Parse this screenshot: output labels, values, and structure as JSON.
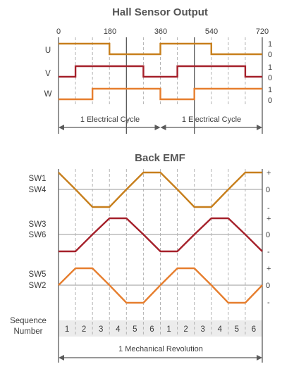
{
  "colors": {
    "u": "#c77f1c",
    "v": "#a5202a",
    "w": "#e67e2e",
    "axis": "#5a5a5a",
    "dash": "#b3b3b3",
    "band": "#ececec",
    "text": "#3c3c3c"
  },
  "hall": {
    "title": "Hall Sensor Output",
    "degree_ticks": [
      "0",
      "180",
      "360",
      "540",
      "720"
    ],
    "signals": [
      {
        "name": "U",
        "high_label": "1",
        "low_label": "0",
        "color_key": "u",
        "pattern": [
          1,
          1,
          1,
          0,
          0,
          0,
          1,
          1,
          1,
          0,
          0,
          0
        ]
      },
      {
        "name": "V",
        "high_label": "1",
        "low_label": "0",
        "color_key": "v",
        "pattern": [
          0,
          1,
          1,
          1,
          1,
          0,
          0,
          1,
          1,
          1,
          1,
          0
        ]
      },
      {
        "name": "W",
        "high_label": "1",
        "low_label": "0",
        "color_key": "w",
        "pattern": [
          0,
          0,
          1,
          1,
          1,
          1,
          0,
          0,
          1,
          1,
          1,
          1
        ]
      }
    ],
    "cycle_labels": [
      "1 Electrical Cycle",
      "1 Electrical Cycle"
    ]
  },
  "emf": {
    "title": "Back EMF",
    "signals": [
      {
        "switch_top": "SW1",
        "switch_bottom": "SW4",
        "plus": "+",
        "zero": "0",
        "minus": "-",
        "color_key": "u",
        "levels": [
          1,
          0,
          -1,
          -1,
          0,
          1,
          1,
          0,
          -1,
          -1,
          0,
          1,
          1
        ]
      },
      {
        "switch_top": "SW3",
        "switch_bottom": "SW6",
        "plus": "+",
        "zero": "0",
        "minus": "-",
        "color_key": "v",
        "levels": [
          -1,
          -1,
          0,
          1,
          1,
          0,
          -1,
          -1,
          0,
          1,
          1,
          0,
          -1
        ]
      },
      {
        "switch_top": "SW5",
        "switch_bottom": "SW2",
        "plus": "+",
        "zero": "0",
        "minus": "-",
        "color_key": "w",
        "levels": [
          0,
          1,
          1,
          0,
          -1,
          -1,
          0,
          1,
          1,
          0,
          -1,
          -1,
          0
        ]
      }
    ],
    "sequence_label": [
      "Sequence",
      "Number"
    ],
    "sequence_numbers": [
      "1",
      "2",
      "3",
      "4",
      "5",
      "6",
      "1",
      "2",
      "3",
      "4",
      "5",
      "6"
    ],
    "revolution_label": "1 Mechanical Revolution"
  }
}
